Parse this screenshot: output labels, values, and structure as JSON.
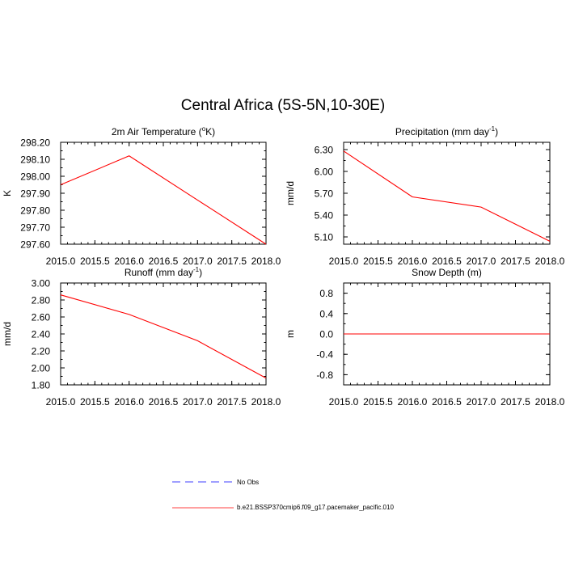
{
  "figure": {
    "title": "Central Africa (5S-5N,10-30E)"
  },
  "chart_data": [
    {
      "type": "line",
      "title": "2m Air Temperature (°K)",
      "title_main": "2m Air Temperature (",
      "title_sup": "o",
      "title_tail": "K)",
      "xlabel": "",
      "ylabel": "K",
      "xlim": [
        2015.0,
        2018.0
      ],
      "ylim": [
        297.6,
        298.2
      ],
      "xticks": [
        "2015.0",
        "2015.5",
        "2016.0",
        "2016.5",
        "2017.0",
        "2017.5",
        "2018.0"
      ],
      "yticks": [
        "297.60",
        "297.70",
        "297.80",
        "297.90",
        "298.00",
        "298.10",
        "298.20"
      ],
      "x": [
        2015.0,
        2016.0,
        2017.0,
        2018.0
      ],
      "series": [
        {
          "name": "b.e21.BSSP370cmip6.f09_g17.pacemaker_pacific.010",
          "values": [
            297.95,
            298.12,
            297.86,
            297.6
          ],
          "color": "#ff0000"
        }
      ]
    },
    {
      "type": "line",
      "title": "Precipitation (mm day-1)",
      "title_main": "Precipitation (mm day",
      "title_sup": "-1",
      "title_tail": ")",
      "xlabel": "",
      "ylabel": "mm/d",
      "xlim": [
        2015.0,
        2018.0
      ],
      "ylim": [
        5.0,
        6.4
      ],
      "xticks": [
        "2015.0",
        "2015.5",
        "2016.0",
        "2016.5",
        "2017.0",
        "2017.5",
        "2018.0"
      ],
      "yticks": [
        "5.10",
        "5.40",
        "5.70",
        "6.00",
        "6.30"
      ],
      "x": [
        2015.0,
        2016.0,
        2017.0,
        2018.0
      ],
      "series": [
        {
          "name": "b.e21.BSSP370cmip6.f09_g17.pacemaker_pacific.010",
          "values": [
            6.28,
            5.65,
            5.51,
            5.04
          ],
          "color": "#ff0000"
        }
      ]
    },
    {
      "type": "line",
      "title": "Runoff (mm day-1)",
      "title_main": "Runoff (mm day",
      "title_sup": "-1",
      "title_tail": ")",
      "xlabel": "",
      "ylabel": "mm/d",
      "xlim": [
        2015.0,
        2018.0
      ],
      "ylim": [
        1.8,
        3.0
      ],
      "xticks": [
        "2015.0",
        "2015.5",
        "2016.0",
        "2016.5",
        "2017.0",
        "2017.5",
        "2018.0"
      ],
      "yticks": [
        "1.80",
        "2.00",
        "2.20",
        "2.40",
        "2.60",
        "2.80",
        "3.00"
      ],
      "x": [
        2015.0,
        2016.0,
        2017.0,
        2018.0
      ],
      "series": [
        {
          "name": "b.e21.BSSP370cmip6.f09_g17.pacemaker_pacific.010",
          "values": [
            2.86,
            2.63,
            2.32,
            1.88
          ],
          "color": "#ff0000"
        }
      ]
    },
    {
      "type": "line",
      "title": "Snow Depth (m)",
      "title_main": "Snow Depth (m)",
      "title_sup": "",
      "title_tail": "",
      "xlabel": "",
      "ylabel": "m",
      "xlim": [
        2015.0,
        2018.0
      ],
      "ylim": [
        -1.0,
        1.0
      ],
      "xticks": [
        "2015.0",
        "2015.5",
        "2016.0",
        "2016.5",
        "2017.0",
        "2017.5",
        "2018.0"
      ],
      "yticks": [
        "-0.8",
        "-0.4",
        "0.0",
        "0.4",
        "0.8"
      ],
      "x": [
        2015.0,
        2016.0,
        2017.0,
        2018.0
      ],
      "series": [
        {
          "name": "b.e21.BSSP370cmip6.f09_g17.pacemaker_pacific.010",
          "values": [
            0.0,
            0.0,
            0.0,
            0.0
          ],
          "color": "#ff0000"
        }
      ]
    }
  ],
  "legend": [
    {
      "label": "No Obs",
      "color": "#0000ff",
      "style": "dashed"
    },
    {
      "label": "b.e21.BSSP370cmip6.f09_g17.pacemaker_pacific.010",
      "color": "#ff0000",
      "style": "solid"
    }
  ]
}
